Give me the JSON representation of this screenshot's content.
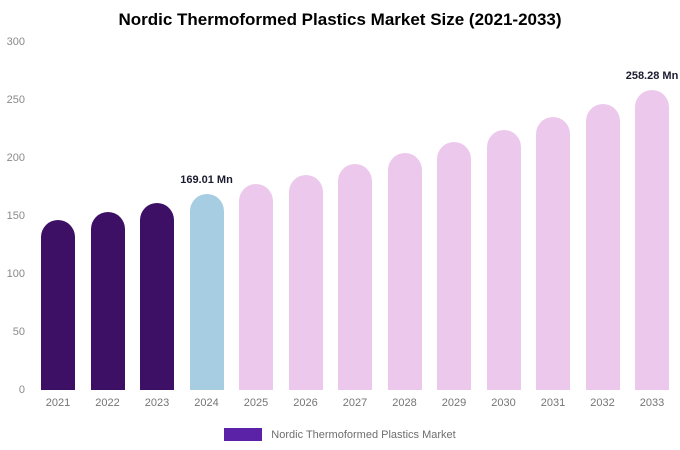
{
  "chart_data": {
    "type": "bar",
    "title": "Nordic Thermoformed Plastics Market Size (2021-2033)",
    "legend": "Nordic Thermoformed Plastics Market",
    "legend_color": "#5b21a6",
    "categories": [
      "2021",
      "2022",
      "2023",
      "2024",
      "2025",
      "2026",
      "2027",
      "2028",
      "2029",
      "2030",
      "2031",
      "2032",
      "2033"
    ],
    "values": [
      146.7,
      153.8,
      161.2,
      169.01,
      177.2,
      185.7,
      194.6,
      204.0,
      213.9,
      224.2,
      235.0,
      246.3,
      258.28
    ],
    "colors": [
      "#3d1065",
      "#3d1065",
      "#3d1065",
      "#a7cde2",
      "#ecc9ec",
      "#ecc9ec",
      "#ecc9ec",
      "#ecc9ec",
      "#ecc9ec",
      "#ecc9ec",
      "#ecc9ec",
      "#ecc9ec",
      "#ecc9ec"
    ],
    "annotations": [
      {
        "index": 3,
        "text": "169.01 Mn"
      },
      {
        "index": 12,
        "text": "258.28 Mn"
      }
    ],
    "xlabel": "",
    "ylabel": "",
    "ylim": [
      0,
      300
    ],
    "yticks": [
      0,
      50,
      100,
      150,
      200,
      250,
      300
    ],
    "grid": false,
    "legend_position": "bottom"
  }
}
